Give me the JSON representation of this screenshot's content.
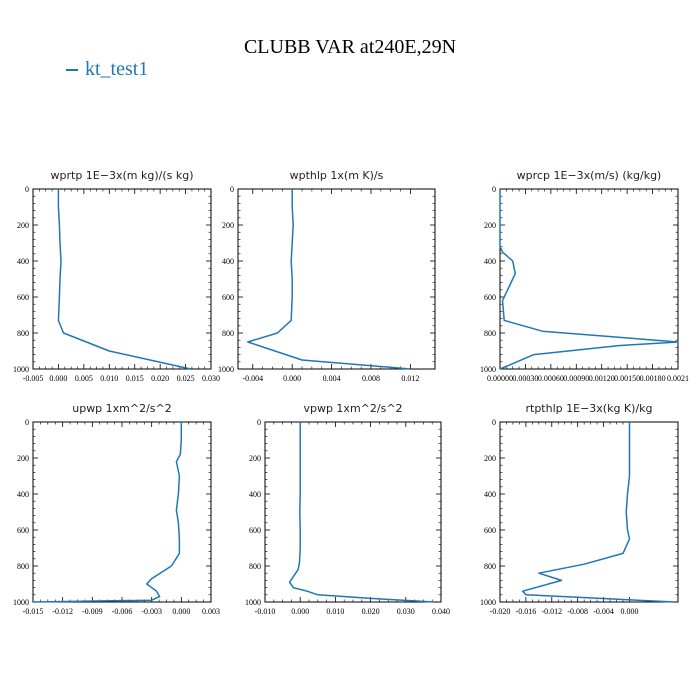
{
  "title": "CLUBB VAR at240E,29N",
  "legend": {
    "label": "kt_test1",
    "color": "#1f77b4"
  },
  "chart_data": [
    {
      "type": "line",
      "title": "wprtp  1E−3x(m kg)/(s kg)",
      "xlim": [
        -0.005,
        0.03
      ],
      "ylim": [
        1000,
        0
      ],
      "x_ticks": [
        "-0.005",
        "0.000",
        "0.005",
        "0.010",
        "0.015",
        "0.020",
        "0.025",
        "0.030"
      ],
      "x_tick_values": [
        -0.005,
        0.0,
        0.005,
        0.01,
        0.015,
        0.02,
        0.025,
        0.03
      ],
      "y_ticks": [
        "0",
        "200",
        "400",
        "600",
        "800",
        "1000"
      ],
      "y_tick_values": [
        0,
        200,
        400,
        600,
        800,
        1000
      ],
      "series": [
        {
          "name": "kt_test1",
          "x": [
            0.0,
            0.0,
            0.0002,
            0.0003,
            0.0005,
            0.0003,
            0.0002,
            0.0,
            0.001,
            0.01,
            0.018,
            0.026
          ],
          "y": [
            0,
            100,
            200,
            300,
            400,
            500,
            600,
            730,
            800,
            900,
            950,
            1000
          ]
        }
      ]
    },
    {
      "type": "line",
      "title": "wpthlp  1x(m K)/s",
      "xlim": [
        -0.0055,
        0.0145
      ],
      "ylim": [
        1000,
        0
      ],
      "x_ticks": [
        "-0.004",
        "0.000",
        "0.004",
        "0.008",
        "0.012"
      ],
      "x_tick_values": [
        -0.004,
        0.0,
        0.004,
        0.008,
        0.012
      ],
      "y_ticks": [
        "0",
        "200",
        "400",
        "600",
        "800",
        "1000"
      ],
      "y_tick_values": [
        0,
        200,
        400,
        600,
        800,
        1000
      ],
      "series": [
        {
          "name": "kt_test1",
          "x": [
            0.0,
            0.0,
            0.0001,
            0.0,
            -0.0001,
            0.0,
            0.0,
            -0.0001,
            -0.0015,
            -0.0045,
            0.001,
            0.012
          ],
          "y": [
            0,
            100,
            200,
            300,
            400,
            500,
            600,
            730,
            800,
            850,
            950,
            1000
          ]
        }
      ]
    },
    {
      "type": "line",
      "title": "wprcp  1E−3x(m/s) (kg/kg)",
      "xlim": [
        0.0,
        0.0021
      ],
      "ylim": [
        1000,
        0
      ],
      "x_ticks": [
        "0.00000",
        "0.00030",
        "0.00060",
        "0.00090",
        "0.00120",
        "0.00150",
        "0.00180",
        "0.0021"
      ],
      "x_tick_values": [
        0.0,
        0.0003,
        0.0006,
        0.0009,
        0.0012,
        0.0015,
        0.0018,
        0.0021
      ],
      "y_ticks": [
        "0",
        "200",
        "400",
        "600",
        "800",
        "1000"
      ],
      "y_tick_values": [
        0,
        200,
        400,
        600,
        800,
        1000
      ],
      "series": [
        {
          "name": "kt_test1",
          "x": [
            0.0,
            0.0,
            0.0,
            3e-05,
            0.00015,
            0.00018,
            0.0001,
            3e-05,
            5e-05,
            0.0005,
            0.0021,
            0.0014,
            0.0004,
            0.0002,
            0.0001,
            0.0
          ],
          "y": [
            0,
            200,
            320,
            350,
            400,
            470,
            550,
            620,
            730,
            790,
            850,
            870,
            920,
            960,
            980,
            1000
          ]
        }
      ]
    },
    {
      "type": "line",
      "title": "upwp  1xm^2/s^2",
      "xlim": [
        -0.015,
        0.003
      ],
      "ylim": [
        1000,
        0
      ],
      "x_ticks": [
        "-0.015",
        "-0.012",
        "-0.009",
        "-0.006",
        "-0.003",
        "0.000",
        "0.003"
      ],
      "x_tick_values": [
        -0.015,
        -0.012,
        -0.009,
        -0.006,
        -0.003,
        0.0,
        0.003
      ],
      "y_ticks": [
        "0",
        "200",
        "400",
        "600",
        "800",
        "1000"
      ],
      "y_tick_values": [
        0,
        200,
        400,
        600,
        800,
        1000
      ],
      "series": [
        {
          "name": "kt_test1",
          "x": [
            0.0,
            0.0,
            -0.0001,
            -0.0005,
            -0.0002,
            -0.0003,
            -0.0005,
            -0.0003,
            -0.0002,
            -0.0002,
            -0.001,
            -0.003,
            -0.0035,
            -0.0025,
            -0.0022,
            -0.003,
            -0.015
          ],
          "y": [
            0,
            100,
            180,
            220,
            300,
            400,
            490,
            560,
            650,
            730,
            800,
            870,
            900,
            940,
            970,
            990,
            1000
          ]
        }
      ]
    },
    {
      "type": "line",
      "title": "vpwp  1xm^2/s^2",
      "xlim": [
        -0.01,
        0.04
      ],
      "ylim": [
        1000,
        0
      ],
      "x_ticks": [
        "-0.010",
        "0.000",
        "0.010",
        "0.020",
        "0.030",
        "0.040"
      ],
      "x_tick_values": [
        -0.01,
        0.0,
        0.01,
        0.02,
        0.03,
        0.04
      ],
      "y_ticks": [
        "0",
        "200",
        "400",
        "600",
        "800",
        "1000"
      ],
      "y_tick_values": [
        0,
        200,
        400,
        600,
        800,
        1000
      ],
      "series": [
        {
          "name": "kt_test1",
          "x": [
            0.0,
            0.0,
            0.0,
            -0.0001,
            0.0,
            0.0,
            -0.0002,
            -0.0006,
            -0.002,
            -0.003,
            -0.002,
            0.002,
            0.005,
            0.02,
            0.038
          ],
          "y": [
            0,
            200,
            400,
            500,
            600,
            700,
            780,
            820,
            860,
            890,
            920,
            940,
            960,
            980,
            1000
          ]
        }
      ]
    },
    {
      "type": "line",
      "title": "rtpthlp  1E−3x(kg K)/kg",
      "xlim": [
        -0.02,
        0.0075
      ],
      "ylim": [
        1000,
        0
      ],
      "x_ticks": [
        "-0.020",
        "-0.016",
        "-0.012",
        "-0.008",
        "-0.004",
        "0.000"
      ],
      "x_tick_values": [
        -0.02,
        -0.016,
        -0.012,
        -0.008,
        -0.004,
        0.0
      ],
      "y_ticks": [
        "0",
        "200",
        "400",
        "600",
        "800",
        "1000"
      ],
      "y_tick_values": [
        0,
        200,
        400,
        600,
        800,
        1000
      ],
      "series": [
        {
          "name": "kt_test1",
          "x": [
            0.0,
            0.0,
            -0.0003,
            -0.0005,
            -0.0003,
            0.0,
            -0.001,
            -0.007,
            -0.014,
            -0.0105,
            -0.0165,
            -0.016,
            0.007
          ],
          "y": [
            0,
            300,
            400,
            500,
            600,
            650,
            730,
            790,
            840,
            880,
            940,
            960,
            1000
          ]
        }
      ]
    }
  ]
}
